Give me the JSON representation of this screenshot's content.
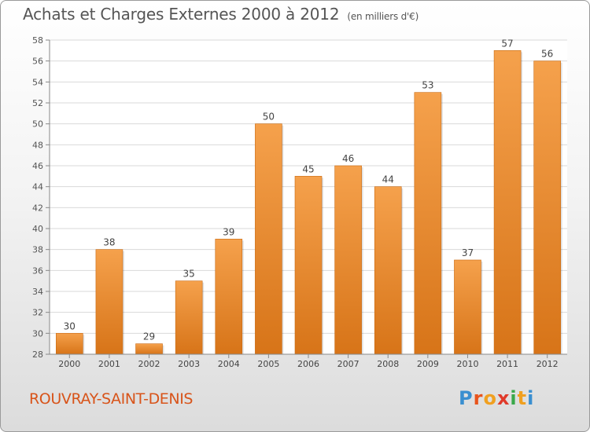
{
  "header": {
    "title": "Achats et Charges Externes 2000 à 2012",
    "units": "(en milliers d'€)"
  },
  "footer": {
    "commune": "ROUVRAY-SAINT-DENIS",
    "brand_letters": [
      "P",
      "r",
      "o",
      "x",
      "i",
      "t",
      "i"
    ]
  },
  "colors": {
    "bar_light": "#f5a14c",
    "bar_dark": "#d77418",
    "commune": "#d8541a",
    "brand": [
      "#3a8fd0",
      "#e8541c",
      "#f0a020",
      "#e03a2a",
      "#3aa84a",
      "#f0a020",
      "#3a8fd0"
    ]
  },
  "chart_data": {
    "type": "bar",
    "categories": [
      "2000",
      "2001",
      "2002",
      "2003",
      "2004",
      "2005",
      "2006",
      "2007",
      "2008",
      "2009",
      "2010",
      "2011",
      "2012"
    ],
    "values": [
      30,
      38,
      29,
      35,
      39,
      50,
      45,
      46,
      44,
      53,
      37,
      57,
      56
    ],
    "data_labels": [
      "30",
      "38",
      "29",
      "35",
      "39",
      "50",
      "45",
      "46",
      "44",
      "53",
      "37",
      "57",
      "56"
    ],
    "ylim": [
      28,
      58
    ],
    "yticks": [
      28,
      30,
      32,
      34,
      36,
      38,
      40,
      42,
      44,
      46,
      48,
      50,
      52,
      54,
      56,
      58
    ],
    "grid": true,
    "legend": "none"
  }
}
